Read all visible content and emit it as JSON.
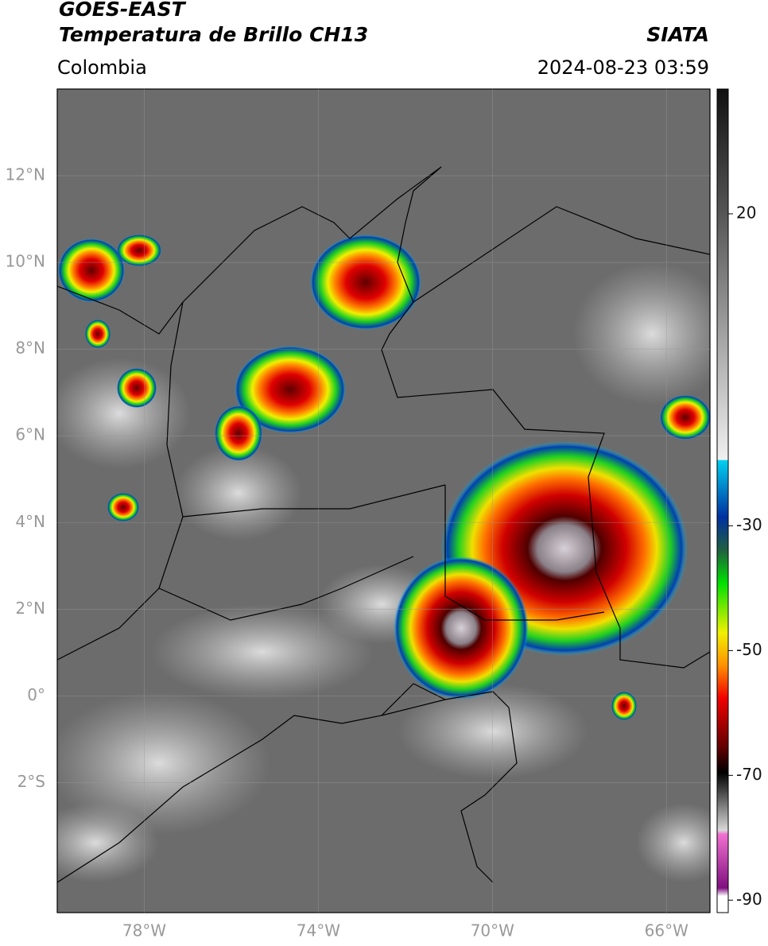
{
  "header": {
    "title": "GOES-EAST",
    "subtitle": "Temperatura de Brillo CH13",
    "source": "SIATA",
    "region": "Colombia",
    "timestamp": "2024-08-23 03:59"
  },
  "map": {
    "xlim": [
      -80,
      -65
    ],
    "ylim": [
      -5,
      14
    ],
    "xticks": [
      {
        "value": -78,
        "label": "78°W"
      },
      {
        "value": -74,
        "label": "74°W"
      },
      {
        "value": -70,
        "label": "70°W"
      },
      {
        "value": -66,
        "label": "66°W"
      }
    ],
    "yticks": [
      {
        "value": 12,
        "label": "12°N"
      },
      {
        "value": 10,
        "label": "10°N"
      },
      {
        "value": 8,
        "label": "8°N"
      },
      {
        "value": 6,
        "label": "6°N"
      },
      {
        "value": 4,
        "label": "4°N"
      },
      {
        "value": 2,
        "label": "2°N"
      },
      {
        "value": 0,
        "label": "0°"
      },
      {
        "value": -2,
        "label": "2°S"
      }
    ],
    "grid": true
  },
  "colorbar": {
    "lim": [
      -92,
      40
    ],
    "ticks": [
      20,
      -30,
      -50,
      -70,
      -90
    ]
  }
}
